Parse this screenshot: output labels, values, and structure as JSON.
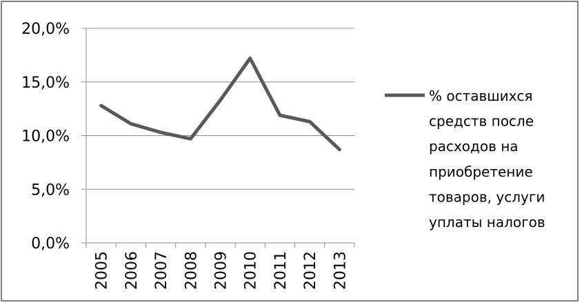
{
  "chart_data": {
    "type": "line",
    "title": "",
    "xlabel": "",
    "ylabel": "",
    "categories": [
      "2005",
      "2006",
      "2007",
      "2008",
      "2009",
      "2010",
      "2011",
      "2012",
      "2013"
    ],
    "series": [
      {
        "name": "% оставшихся средств после расходов на приобретение товаров, услуги уплаты налогов",
        "values": [
          12.8,
          11.1,
          10.3,
          9.7,
          13.3,
          17.2,
          11.9,
          11.3,
          8.7
        ],
        "color": "#595959"
      }
    ],
    "yticks": [
      "0,0%",
      "5,0%",
      "10,0%",
      "15,0%",
      "20,0%"
    ],
    "ylim": [
      0,
      20
    ],
    "grid": true,
    "legend_position": "right",
    "legend_lines": [
      "% оставшихся",
      "средств после",
      "расходов на",
      "приобретение",
      "товаров, услуги",
      "уплаты налогов"
    ]
  }
}
